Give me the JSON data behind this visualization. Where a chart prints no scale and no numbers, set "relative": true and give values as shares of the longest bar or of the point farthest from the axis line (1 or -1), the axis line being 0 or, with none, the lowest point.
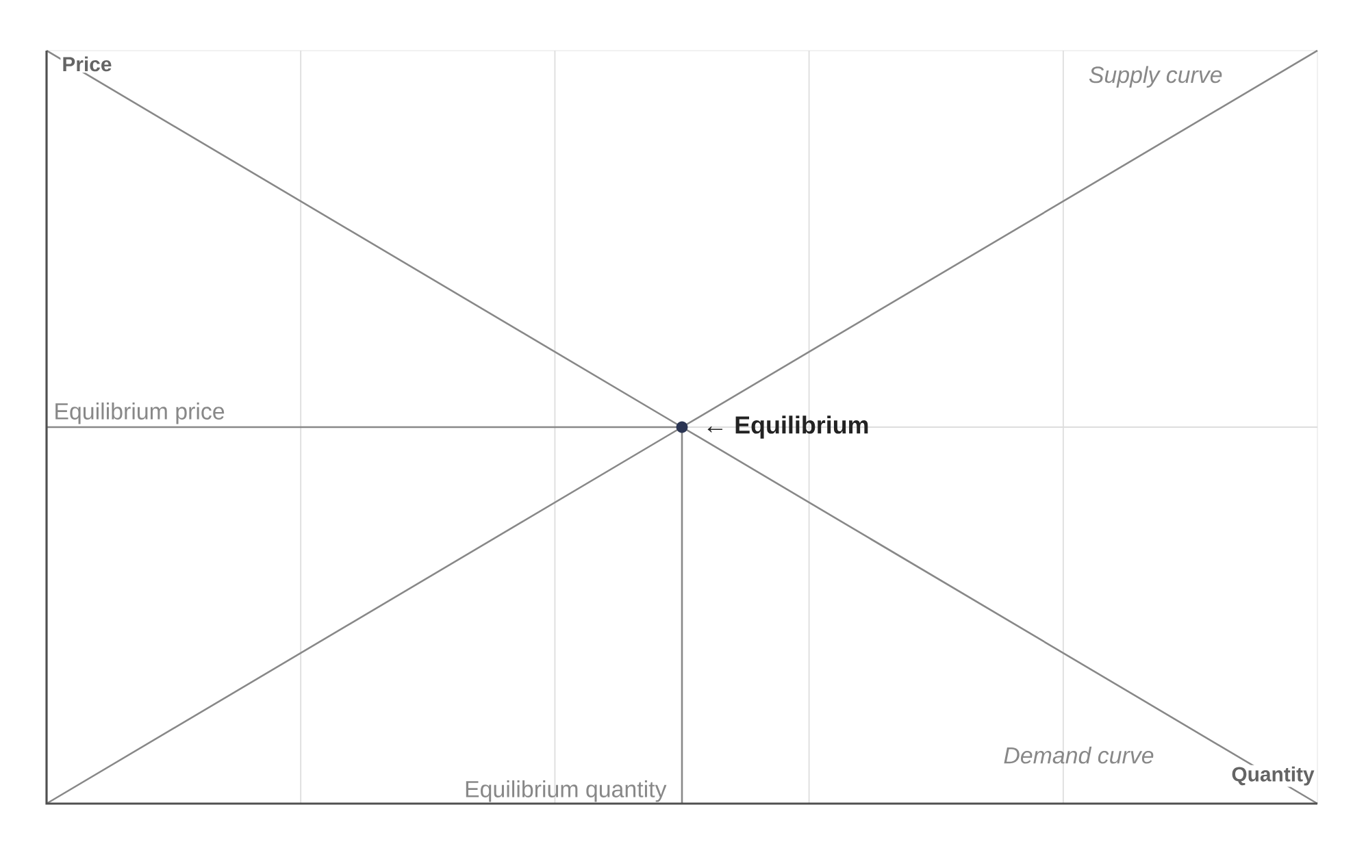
{
  "chart_data": {
    "type": "line",
    "relative": true,
    "xlabel": "Quantity",
    "ylabel": "Price",
    "grid": true,
    "tick_labels": false,
    "categories": [
      null,
      null,
      null
    ],
    "series": [
      {
        "name": "Supply curve",
        "color": "#888888",
        "values": [
          0,
          0.5,
          1
        ]
      },
      {
        "name": "Demand curve",
        "color": "#888888",
        "values": [
          1,
          0.5,
          0
        ]
      },
      {
        "name": "Equilibrium price",
        "color": "#888888",
        "values": [
          0.5,
          0.5,
          null
        ]
      }
    ],
    "annotations": [
      "← Equilibrium",
      "Equilibrium quantity"
    ]
  }
}
